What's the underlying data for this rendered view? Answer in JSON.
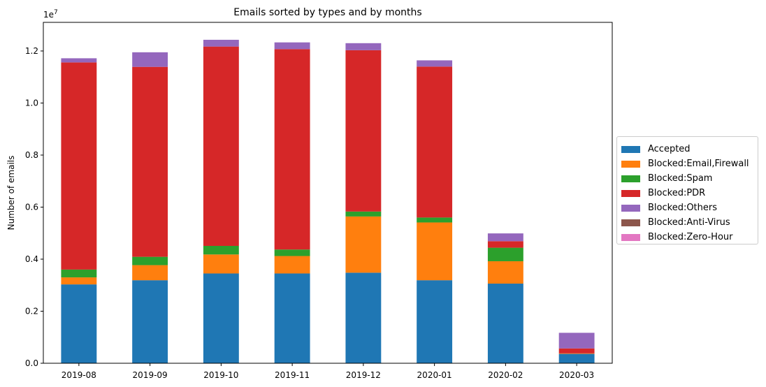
{
  "chart_data": {
    "type": "bar",
    "stacked": true,
    "title": "Emails sorted by types and by months",
    "xlabel": "",
    "ylabel": "Number of emails",
    "y_offset_text": "1e7",
    "ylim": [
      0,
      1.31
    ],
    "y_scale_factor": 10000000,
    "yticks": [
      "0.0",
      "0.2",
      "0.4",
      "0.6",
      "0.8",
      "1.0",
      "1.2"
    ],
    "categories": [
      "2019-08",
      "2019-09",
      "2019-10",
      "2019-11",
      "2019-12",
      "2020-01",
      "2020-02",
      "2020-03"
    ],
    "series": [
      {
        "name": "Accepted",
        "color": "#1f77b4",
        "values": [
          0.303,
          0.319,
          0.345,
          0.345,
          0.348,
          0.319,
          0.306,
          0.036
        ]
      },
      {
        "name": "Blocked:Email,Firewall",
        "color": "#ff7f0e",
        "values": [
          0.027,
          0.058,
          0.073,
          0.067,
          0.216,
          0.222,
          0.086,
          0.002
        ]
      },
      {
        "name": "Blocked:Spam",
        "color": "#2ca02c",
        "values": [
          0.03,
          0.032,
          0.033,
          0.025,
          0.019,
          0.019,
          0.052,
          0.0
        ]
      },
      {
        "name": "Blocked:PDR",
        "color": "#d62728",
        "values": [
          0.796,
          0.73,
          0.766,
          0.77,
          0.62,
          0.58,
          0.025,
          0.019
        ]
      },
      {
        "name": "Blocked:Others",
        "color": "#9467bd",
        "values": [
          0.016,
          0.056,
          0.026,
          0.026,
          0.027,
          0.024,
          0.03,
          0.06
        ]
      },
      {
        "name": "Blocked:Anti-Virus",
        "color": "#8c564b",
        "values": [
          0,
          0,
          0,
          0,
          0,
          0,
          0,
          0
        ]
      },
      {
        "name": "Blocked:Zero-Hour",
        "color": "#e377c2",
        "values": [
          0,
          0,
          0,
          0,
          0,
          0,
          0,
          0
        ]
      }
    ],
    "legend_position": "center-right outside",
    "grid": false
  }
}
